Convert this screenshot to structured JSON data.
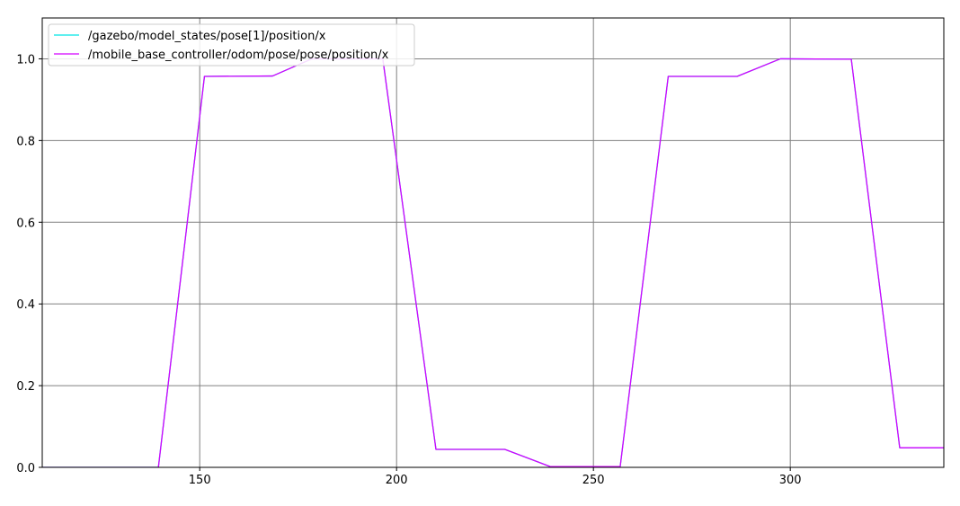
{
  "chart_data": {
    "type": "line",
    "title": "",
    "xlabel": "",
    "ylabel": "",
    "xlim": [
      110,
      339
    ],
    "ylim": [
      0,
      1.1
    ],
    "xticks": [
      150,
      200,
      250,
      300
    ],
    "xtick_labels": [
      "150",
      "200",
      "250",
      "300"
    ],
    "yticks": [
      0,
      0.2,
      0.4,
      0.6,
      0.8,
      1.0
    ],
    "ytick_labels": [
      "0.0",
      "0.2",
      "0.4",
      "0.6",
      "0.8",
      "1.0"
    ],
    "grid": true,
    "legend_position": "top-left",
    "series": [
      {
        "name": "/gazebo/model_states/pose[1]/position/x",
        "color": "#00e5e5",
        "x": [
          110,
          139.5,
          151.2,
          168.5,
          178.5,
          196.5,
          210,
          227.5,
          239,
          256.8,
          269,
          286.5,
          297.5,
          315.5,
          327.8,
          339
        ],
        "y": [
          0,
          0,
          0.957,
          0.958,
          1.0,
          1.0,
          0.044,
          0.044,
          0.002,
          0.002,
          0.957,
          0.957,
          1.0,
          0.999,
          0.048,
          0.048
        ]
      },
      {
        "name": "/mobile_base_controller/odom/pose/pose/position/x",
        "color": "#d400ff",
        "x": [
          110,
          139.5,
          151.2,
          168.5,
          178.5,
          196.5,
          210,
          227.5,
          239,
          256.8,
          269,
          286.5,
          297.5,
          315.5,
          327.8,
          339
        ],
        "y": [
          0,
          0,
          0.957,
          0.958,
          1.0,
          1.0,
          0.044,
          0.044,
          0.002,
          0.002,
          0.957,
          0.957,
          1.0,
          0.999,
          0.048,
          0.048
        ]
      }
    ]
  }
}
